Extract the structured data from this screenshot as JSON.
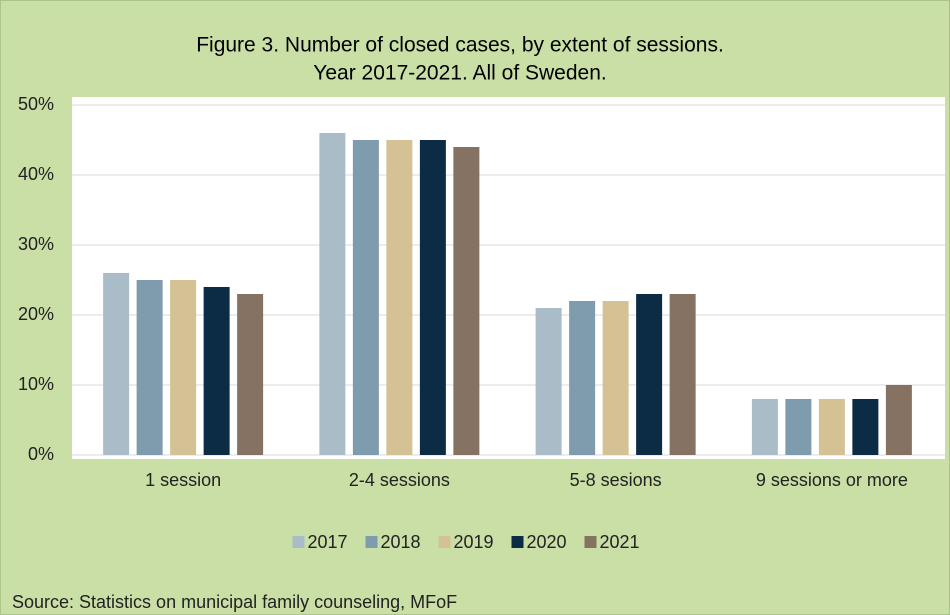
{
  "chart_data": {
    "type": "bar",
    "title": [
      "Figure 3. Number of closed cases, by extent of sessions.",
      "Year 2017-2021. All of Sweden."
    ],
    "categories": [
      "1 session",
      "2-4 sessions",
      "5-8 sesions",
      "9 sessions or more"
    ],
    "series": [
      {
        "name": "2017",
        "color": "#a9bcc8",
        "values": [
          26,
          46,
          21,
          8
        ]
      },
      {
        "name": "2018",
        "color": "#7f9bae",
        "values": [
          25,
          45,
          22,
          8
        ]
      },
      {
        "name": "2019",
        "color": "#d4c194",
        "values": [
          25,
          45,
          22,
          8
        ]
      },
      {
        "name": "2020",
        "color": "#0b2c44",
        "values": [
          24,
          45,
          23,
          8
        ]
      },
      {
        "name": "2021",
        "color": "#857262",
        "values": [
          23,
          44,
          23,
          10
        ]
      }
    ],
    "ylim": [
      0,
      50
    ],
    "yticks": [
      {
        "value": 0,
        "label": "0%"
      },
      {
        "value": 10,
        "label": "10%"
      },
      {
        "value": 20,
        "label": "20%"
      },
      {
        "value": 30,
        "label": "30%"
      },
      {
        "value": 40,
        "label": "40%"
      },
      {
        "value": 50,
        "label": "50%"
      }
    ],
    "grid": true,
    "legend": "bottom",
    "source": "Source: Statistics on municipal family counseling, MFoF"
  }
}
